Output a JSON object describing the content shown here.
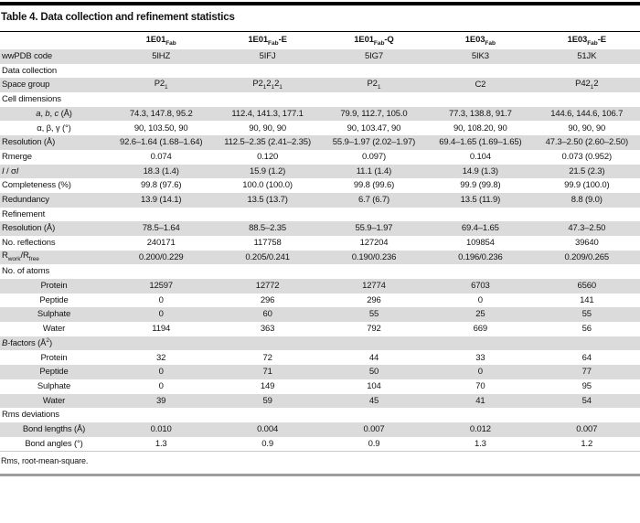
{
  "title": "Table 4. Data collection and refinement statistics",
  "footnote": "Rms, root-mean-square.",
  "colors": {
    "row_stripe": "#dbdbdb",
    "top_rule": "#000000",
    "title_rule": "#000000",
    "footnote_rule": "#c9c9c9",
    "bottom_rule": "#9e9e9e",
    "text": "#141414"
  },
  "table": {
    "columns": [
      "1E01_{Fab}",
      "1E01_{Fab}-E",
      "1E01_{Fab}-Q",
      "1E03_{Fab}",
      "1E03_{Fab}-E"
    ],
    "rows": [
      {
        "label": "wwPDB code",
        "bold": true,
        "boldValues": true,
        "values": [
          "5IHZ",
          "5IFJ",
          "5IG7",
          "5IK3",
          "51JK"
        ]
      },
      {
        "label": "Data collection",
        "bold": true,
        "values": null
      },
      {
        "label": "Space group",
        "values": [
          "P2_{1}",
          "P2_{1}2_{1}2_{1}",
          "P2_{1}",
          "C2",
          "P42_{1}2"
        ]
      },
      {
        "label": "Cell dimensions",
        "values": null
      },
      {
        "label": "*a*, *b*, *c* (Å)",
        "indent": true,
        "values": [
          "74.3, 147.8, 95.2",
          "112.4, 141.3, 177.1",
          "79.9, 112.7, 105.0",
          "77.3, 138.8, 91.7",
          "144.6, 144.6, 106.7"
        ]
      },
      {
        "label": "α, β, γ (°)",
        "indent": true,
        "values": [
          "90, 103.50, 90",
          "90, 90, 90",
          "90, 103.47, 90",
          "90, 108.20, 90",
          "90, 90, 90"
        ]
      },
      {
        "label": "Resolution (Å)",
        "values": [
          "92.6–1.64 (1.68–1.64)",
          "112.5–2.35 (2.41–2.35)",
          "55.9–1.97 (2.02–1.97)",
          "69.4–1.65 (1.69–1.65)",
          "47.3–2.50 (2.60–2.50)"
        ]
      },
      {
        "label": "Rmerge",
        "values": [
          "0.074",
          "0.120",
          "0.097)",
          "0.104",
          "0.073 (0.952)"
        ]
      },
      {
        "label": "*I* / σ*I*",
        "values": [
          "18.3 (1.4)",
          "15.9 (1.2)",
          "11.1 (1.4)",
          "14.9 (1.3)",
          "21.5 (2.3)"
        ]
      },
      {
        "label": "Completeness (%)",
        "values": [
          "99.8 (97.6)",
          "100.0 (100.0)",
          "99.8 (99.6)",
          "99.9 (99.8)",
          "99.9 (100.0)"
        ]
      },
      {
        "label": "Redundancy",
        "values": [
          "13.9 (14.1)",
          "13.5 (13.7)",
          "6.7 (6.7)",
          "13.5 (11.9)",
          "8.8 (9.0)"
        ]
      },
      {
        "label": "Refinement",
        "bold": true,
        "values": null
      },
      {
        "label": "Resolution (Å)",
        "values": [
          "78.5–1.64",
          "88.5–2.35",
          "55.9–1.97",
          "69.4–1.65",
          "47.3–2.50"
        ]
      },
      {
        "label": "No. reflections",
        "values": [
          "240171",
          "117758",
          "127204",
          "109854",
          "39640"
        ]
      },
      {
        "label": "R_{work}/R_{free}",
        "values": [
          "0.200/0.229",
          "0.205/0.241",
          "0.190/0.236",
          "0.196/0.236",
          "0.209/0.265"
        ]
      },
      {
        "label": "No. of atoms",
        "values": null
      },
      {
        "label": "Protein",
        "indent": true,
        "values": [
          "12597",
          "12772",
          "12774",
          "6703",
          "6560"
        ]
      },
      {
        "label": "Peptide",
        "indent": true,
        "values": [
          "0",
          "296",
          "296",
          "0",
          "141"
        ]
      },
      {
        "label": "Sulphate",
        "indent": true,
        "values": [
          "0",
          "60",
          "55",
          "25",
          "55"
        ]
      },
      {
        "label": "Water",
        "indent": true,
        "values": [
          "1194",
          "363",
          "792",
          "669",
          "56"
        ]
      },
      {
        "label": "*B*-factors (Å^{2})",
        "values": null
      },
      {
        "label": "Protein",
        "indent": true,
        "values": [
          "32",
          "72",
          "44",
          "33",
          "64"
        ]
      },
      {
        "label": "Peptide",
        "indent": true,
        "values": [
          "0",
          "71",
          "50",
          "0",
          "77"
        ]
      },
      {
        "label": "Sulphate",
        "indent": true,
        "values": [
          "0",
          "149",
          "104",
          "70",
          "95"
        ]
      },
      {
        "label": "Water",
        "indent": true,
        "values": [
          "39",
          "59",
          "45",
          "41",
          "54"
        ]
      },
      {
        "label": "Rms deviations",
        "values": null
      },
      {
        "label": "Bond lengths (Å)",
        "indent": true,
        "values": [
          "0.010",
          "0.004",
          "0.007",
          "0.012",
          "0.007"
        ]
      },
      {
        "label": "Bond angles (°)",
        "indent": true,
        "values": [
          "1.3",
          "0.9",
          "0.9",
          "1.3",
          "1.2"
        ]
      }
    ]
  }
}
